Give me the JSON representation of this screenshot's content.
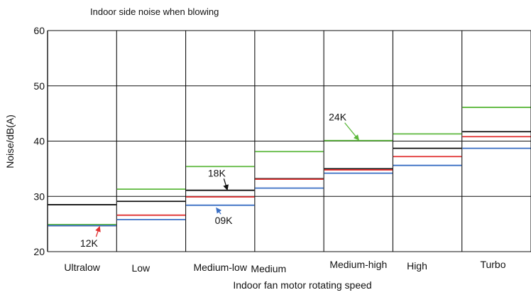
{
  "chart_data": {
    "type": "step-line",
    "title": "Indoor side noise when blowing",
    "xlabel": "Indoor fan motor rotating speed",
    "ylabel": "Noise/dB(A)",
    "ylim": [
      20,
      60
    ],
    "yticks": [
      "20",
      "30",
      "40",
      "50",
      "60"
    ],
    "grid": true,
    "categories": [
      "Ultralow",
      "Low",
      "Medium-low",
      "Medium",
      "Medium-high",
      "High",
      "Turbo"
    ],
    "series": [
      {
        "name": "24K",
        "color": "#5cb83c",
        "values": [
          24.9,
          31.3,
          35.4,
          38.1,
          40.1,
          41.3,
          46.1
        ]
      },
      {
        "name": "18K",
        "color": "#111111",
        "values": [
          28.5,
          29.1,
          31.1,
          33.2,
          35.0,
          38.7,
          41.7
        ]
      },
      {
        "name": "12K",
        "color": "#e03030",
        "values": [
          24.7,
          26.6,
          29.9,
          33.1,
          34.8,
          37.2,
          40.8
        ]
      },
      {
        "name": "09K",
        "color": "#3a6fc4",
        "values": [
          24.7,
          25.8,
          28.4,
          31.5,
          34.2,
          35.6,
          38.7
        ]
      }
    ],
    "annotations": [
      {
        "label": "24K",
        "series": "24K",
        "color": "#5cb83c",
        "text_pos": [
          4.2,
          43.7
        ],
        "arrow_to": [
          4.5,
          40.3
        ]
      },
      {
        "label": "18K",
        "series": "18K",
        "color": "#111111",
        "text_pos": [
          2.45,
          33.6
        ],
        "arrow_to": [
          2.6,
          31.3
        ]
      },
      {
        "label": "12K",
        "series": "12K",
        "color": "#e03030",
        "text_pos": [
          0.6,
          20.9
        ],
        "arrow_to": [
          0.75,
          24.4
        ]
      },
      {
        "label": "09K",
        "series": "09K",
        "color": "#3a6fc4",
        "text_pos": [
          2.55,
          25.0
        ],
        "arrow_to": [
          2.45,
          27.8
        ]
      }
    ]
  }
}
